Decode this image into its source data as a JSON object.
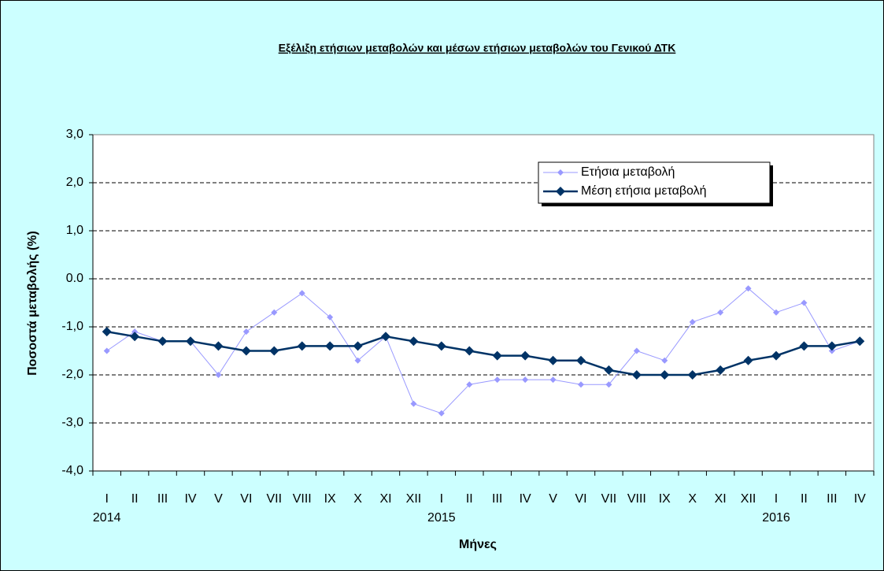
{
  "chart_data": {
    "type": "line",
    "title": "Εξέλιξη ετήσιων μεταβολών και μέσων ετήσιων μεταβολών του Γενικού ΔΤΚ",
    "y_label": "Ποσοστά μεταβολής (%)",
    "x_label": "Μήνες",
    "categories": [
      "I",
      "II",
      "III",
      "IV",
      "V",
      "VI",
      "VII",
      "VIII",
      "IX",
      "X",
      "XI",
      "XII",
      "I",
      "II",
      "III",
      "IV",
      "V",
      "VI",
      "VII",
      "VIII",
      "IX",
      "X",
      "XI",
      "XII",
      "I",
      "II",
      "III",
      "IV"
    ],
    "years": [
      "2014",
      "2015",
      "2016"
    ],
    "series": [
      {
        "name": "Ετήσια μεταβολή",
        "color": "#9999ff",
        "values": [
          -1.5,
          -1.1,
          -1.3,
          -1.3,
          -2.0,
          -1.1,
          -0.7,
          -0.3,
          -0.8,
          -1.7,
          -1.2,
          -2.6,
          -2.8,
          -2.2,
          -2.1,
          -2.1,
          -2.1,
          -2.2,
          -2.2,
          -1.5,
          -1.7,
          -0.9,
          -0.7,
          -0.2,
          -0.7,
          -0.5,
          -1.5,
          -1.3
        ]
      },
      {
        "name": "Μέση ετήσια μεταβολή",
        "color": "#003366",
        "values": [
          -1.1,
          -1.2,
          -1.3,
          -1.3,
          -1.4,
          -1.5,
          -1.5,
          -1.4,
          -1.4,
          -1.4,
          -1.2,
          -1.3,
          -1.4,
          -1.5,
          -1.6,
          -1.6,
          -1.7,
          -1.7,
          -1.9,
          -2.0,
          -2.0,
          -2.0,
          -1.9,
          -1.7,
          -1.6,
          -1.4,
          -1.4,
          -1.3
        ]
      }
    ],
    "ylim": [
      -4,
      3
    ],
    "yticks": [
      {
        "value": -4,
        "label": "-4,0"
      },
      {
        "value": -3,
        "label": "-3,0"
      },
      {
        "value": -2,
        "label": "-2,0"
      },
      {
        "value": -1,
        "label": "-1,0"
      },
      {
        "value": 0,
        "label": "0.0"
      },
      {
        "value": 1,
        "label": "1,0"
      },
      {
        "value": 2,
        "label": "2,0"
      },
      {
        "value": 3,
        "label": "3,0"
      }
    ],
    "grid": true,
    "legend": "upper right"
  }
}
